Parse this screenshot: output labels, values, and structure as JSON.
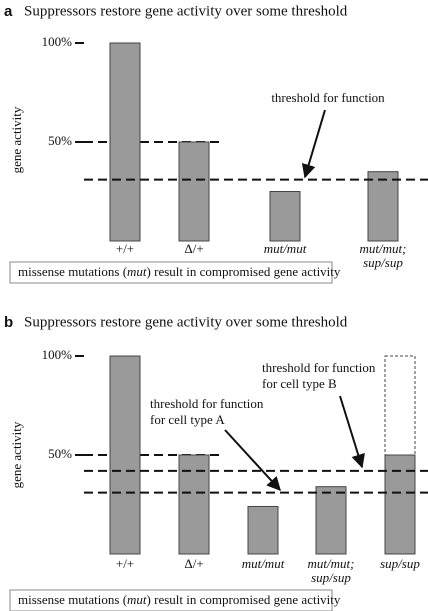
{
  "chart_data": [
    {
      "type": "bar",
      "panel": "a",
      "title": "Suppressors restore gene activity over some threshold",
      "y_label": "gene activity",
      "categories": [
        "+/+",
        "Δ/+",
        "mut/mut",
        [
          "mut/mut;",
          "sup/sup"
        ]
      ],
      "values": [
        100,
        50,
        25,
        35
      ],
      "color": "#9a9a9a",
      "ylim": [
        0,
        100
      ],
      "yticks": [
        {
          "value": 50,
          "label": "50%"
        },
        {
          "value": 100,
          "label": "100%"
        }
      ],
      "reference_lines": [
        50
      ],
      "thresholds": [
        {
          "value": 31,
          "label": [
            "threshold for function"
          ]
        }
      ],
      "note": [
        "missense mutations (",
        "mut",
        ") result in compromised gene activity"
      ]
    },
    {
      "type": "bar",
      "panel": "b",
      "title": "Suppressors restore gene activity over some threshold",
      "y_label": "gene activity",
      "categories": [
        "+/+",
        "Δ/+",
        "mut/mut",
        [
          "mut/mut;",
          "sup/sup"
        ],
        "sup/sup"
      ],
      "values": [
        100,
        50,
        24,
        34,
        50
      ],
      "outline_values": [
        null,
        null,
        null,
        null,
        100
      ],
      "color": "#9a9a9a",
      "ylim": [
        0,
        100
      ],
      "yticks": [
        {
          "value": 50,
          "label": "50%"
        },
        {
          "value": 100,
          "label": "100%"
        }
      ],
      "reference_lines": [
        50
      ],
      "thresholds": [
        {
          "value": 31,
          "label": [
            "threshold for function",
            "for cell type A"
          ]
        },
        {
          "value": 42,
          "label": [
            "threshold for function",
            "for cell type B"
          ]
        }
      ],
      "note": [
        "missense mutations (",
        "mut",
        ") result in compromised gene activity"
      ]
    }
  ]
}
